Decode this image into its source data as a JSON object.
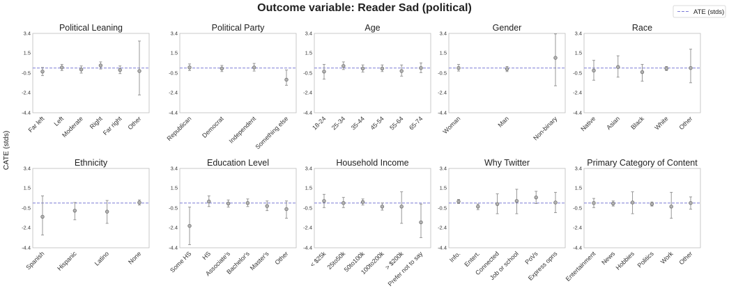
{
  "title": "Outcome variable: Reader Sad (political)",
  "legend_label": "ATE (stds)",
  "colors": {
    "point": "#8c8c8c",
    "error": "#8c8c8c",
    "ate_line": "#7b7bd6",
    "axes": "#bdbdbd",
    "text": "#222222"
  },
  "chart_data": {
    "type": "scatter",
    "ylabel": "CATE (stds)",
    "ylim": [
      -4.4,
      3.4
    ],
    "yticks": [
      3.4,
      1.5,
      -0.5,
      -2.4,
      -4.4
    ],
    "ytick_labels": [
      "3.4",
      "1.5",
      "-0.5",
      "-2.4",
      "-4.4"
    ],
    "ate": 0.0,
    "panels": [
      {
        "title": "Political Leaning",
        "categories": [
          "Far left",
          "Left",
          "Moderate",
          "Right",
          "Far right",
          "Other"
        ],
        "values": [
          -0.35,
          0.05,
          -0.15,
          0.25,
          -0.2,
          -0.3
        ],
        "lower": [
          -0.75,
          -0.25,
          -0.5,
          -0.1,
          -0.55,
          -2.65
        ],
        "upper": [
          0.05,
          0.35,
          0.2,
          0.6,
          0.2,
          2.65
        ]
      },
      {
        "title": "Political Party",
        "categories": [
          "Republican",
          "Democrat",
          "Independent",
          "Something else"
        ],
        "values": [
          0.05,
          -0.05,
          0.05,
          -1.15
        ],
        "lower": [
          -0.25,
          -0.35,
          -0.3,
          -1.7
        ],
        "upper": [
          0.4,
          0.25,
          0.45,
          -0.2
        ]
      },
      {
        "title": "Age",
        "categories": [
          "18-24",
          "25-34",
          "35-44",
          "45-54",
          "55-64",
          "65-74"
        ],
        "values": [
          -0.35,
          0.2,
          -0.05,
          -0.05,
          -0.3,
          0.0
        ],
        "lower": [
          -1.1,
          -0.15,
          -0.4,
          -0.35,
          -0.8,
          -0.45
        ],
        "upper": [
          0.35,
          0.6,
          0.3,
          0.3,
          0.3,
          0.5
        ]
      },
      {
        "title": "Gender",
        "categories": [
          "Woman",
          "Man",
          "Non-binary"
        ],
        "values": [
          0.0,
          -0.1,
          1.0
        ],
        "lower": [
          -0.3,
          -0.35,
          -1.75
        ],
        "upper": [
          0.35,
          0.15,
          3.35
        ]
      },
      {
        "title": "Race",
        "categories": [
          "Native",
          "Asian",
          "Black",
          "White",
          "Other"
        ],
        "values": [
          -0.25,
          0.1,
          -0.4,
          -0.05,
          0.0
        ],
        "lower": [
          -1.2,
          -0.9,
          -1.3,
          -0.25,
          -1.45
        ],
        "upper": [
          0.75,
          1.2,
          0.35,
          0.15,
          1.85
        ]
      },
      {
        "title": "Ethnicity",
        "categories": [
          "Spanish",
          "Hispanic",
          "Latino",
          "None"
        ],
        "values": [
          -1.35,
          -0.75,
          -0.85,
          0.05
        ],
        "lower": [
          -3.15,
          -1.65,
          -2.0,
          -0.2
        ],
        "upper": [
          0.7,
          0.05,
          0.25,
          0.3
        ]
      },
      {
        "title": "Education Level",
        "categories": [
          "Some HS",
          "HS",
          "Associate's",
          "Bachelor's",
          "Master's",
          "Other"
        ],
        "values": [
          -2.25,
          0.15,
          -0.05,
          0.0,
          -0.3,
          -0.6
        ],
        "lower": [
          -4.1,
          -0.35,
          -0.4,
          -0.35,
          -0.75,
          -1.5
        ],
        "upper": [
          -0.4,
          0.7,
          0.3,
          0.4,
          0.2,
          0.2
        ]
      },
      {
        "title": "Household Income",
        "categories": [
          "< $25k",
          "25to50k",
          "50to100k",
          "100to200k",
          "> $200k",
          "Prefer not to say"
        ],
        "values": [
          0.2,
          0.0,
          0.1,
          -0.35,
          -0.35,
          -1.9
        ],
        "lower": [
          -0.45,
          -0.45,
          -0.2,
          -0.7,
          -2.0,
          -3.4
        ],
        "upper": [
          0.85,
          0.55,
          0.4,
          0.0,
          1.1,
          -0.1
        ]
      },
      {
        "title": "Why Twitter",
        "categories": [
          "Info.",
          "Entert.",
          "Connected",
          "Job or school",
          "PoVs",
          "Express opns"
        ],
        "values": [
          0.15,
          -0.35,
          -0.1,
          0.2,
          0.55,
          0.05
        ],
        "lower": [
          -0.05,
          -0.65,
          -1.05,
          -1.05,
          -0.05,
          -0.95
        ],
        "upper": [
          0.35,
          -0.1,
          0.9,
          1.35,
          1.15,
          1.05
        ]
      },
      {
        "title": "Primary Category of Content",
        "categories": [
          "Entertainment",
          "News",
          "Hobbies",
          "Politics",
          "Work",
          "Other"
        ],
        "values": [
          0.0,
          -0.05,
          0.05,
          -0.1,
          -0.35,
          0.0
        ],
        "lower": [
          -0.45,
          -0.3,
          -1.05,
          -0.3,
          -1.5,
          -0.6
        ],
        "upper": [
          0.45,
          0.2,
          1.1,
          0.1,
          1.05,
          0.6
        ]
      }
    ]
  }
}
